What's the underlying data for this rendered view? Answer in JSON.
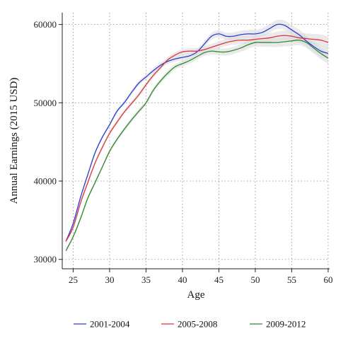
{
  "chart_data": {
    "type": "line",
    "title": "",
    "xlabel": "Age",
    "ylabel": "Annual Earnings (2015 USD)",
    "xlim": [
      23.5,
      60.2
    ],
    "ylim": [
      28800,
      61500
    ],
    "x_ticks": [
      25,
      30,
      35,
      40,
      45,
      50,
      55,
      60
    ],
    "x_tick_labels": [
      "25",
      "30",
      "35",
      "40",
      "45",
      "50",
      "55",
      "60"
    ],
    "y_ticks": [
      30000,
      40000,
      50000,
      60000
    ],
    "y_tick_labels": [
      "30000",
      "40000",
      "50000",
      "60000"
    ],
    "grid": true,
    "legend_position": "bottom",
    "band_color": "#d9d9d9",
    "series": [
      {
        "name": "2001-2004",
        "color": "#2b3fd6",
        "x": [
          24,
          25,
          26,
          27,
          28,
          29,
          30,
          31,
          32,
          33,
          34,
          35,
          36,
          37,
          38,
          39,
          40,
          41,
          42,
          43,
          44,
          45,
          46,
          47,
          48,
          49,
          50,
          51,
          52,
          53,
          54,
          55,
          56,
          57,
          58,
          59,
          60
        ],
        "y": [
          32300,
          34600,
          37900,
          40800,
          43600,
          45600,
          47200,
          48900,
          50000,
          51300,
          52500,
          53300,
          54100,
          54800,
          55300,
          55600,
          55800,
          56000,
          56500,
          57500,
          58500,
          58800,
          58500,
          58500,
          58700,
          58800,
          58800,
          59000,
          59500,
          60000,
          59900,
          59300,
          58700,
          57900,
          57200,
          56600,
          56300
        ]
      },
      {
        "name": "2005-2008",
        "color": "#e0343a",
        "x": [
          24,
          25,
          26,
          27,
          28,
          29,
          30,
          31,
          32,
          33,
          34,
          35,
          36,
          37,
          38,
          39,
          40,
          41,
          42,
          43,
          44,
          45,
          46,
          47,
          48,
          49,
          50,
          51,
          52,
          53,
          54,
          55,
          56,
          57,
          58,
          59,
          60
        ],
        "y": [
          32300,
          34100,
          37200,
          39800,
          42300,
          44300,
          46100,
          47500,
          48800,
          49900,
          51000,
          52300,
          53500,
          54500,
          55500,
          56100,
          56500,
          56600,
          56600,
          56800,
          57100,
          57400,
          57700,
          57900,
          58000,
          58000,
          58100,
          58200,
          58300,
          58500,
          58600,
          58500,
          58300,
          58200,
          58100,
          58000,
          57700
        ]
      },
      {
        "name": "2009-2012",
        "color": "#2e8a2b",
        "x": [
          24,
          25,
          26,
          27,
          28,
          29,
          30,
          31,
          32,
          33,
          34,
          35,
          36,
          37,
          38,
          39,
          40,
          41,
          42,
          43,
          44,
          45,
          46,
          47,
          48,
          49,
          50,
          51,
          52,
          53,
          54,
          55,
          56,
          57,
          58,
          59,
          60
        ],
        "y": [
          31100,
          32900,
          35200,
          37800,
          39800,
          41800,
          43800,
          45300,
          46600,
          47800,
          48900,
          50000,
          51600,
          52800,
          53800,
          54600,
          55000,
          55400,
          55900,
          56400,
          56600,
          56500,
          56500,
          56700,
          57000,
          57400,
          57700,
          57700,
          57700,
          57700,
          57800,
          57900,
          58000,
          57700,
          57000,
          56300,
          55700
        ]
      }
    ]
  }
}
